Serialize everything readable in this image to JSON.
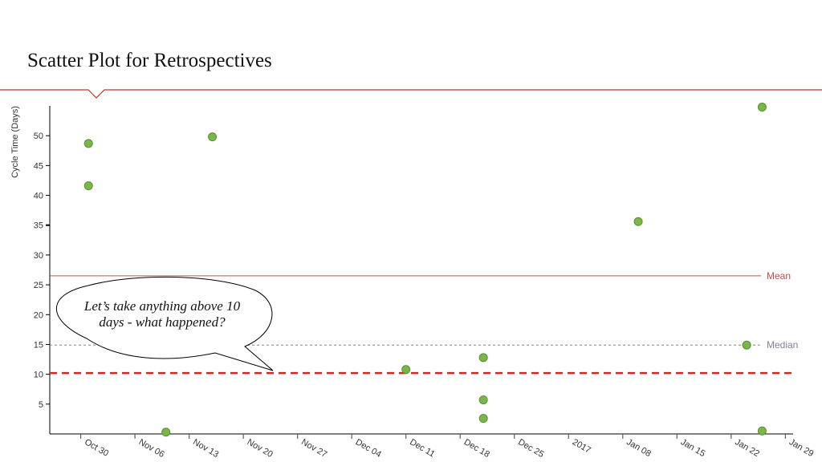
{
  "slide": {
    "title": "Scatter Plot for Retrospectives",
    "callout": "Let’s take anything above 10 days - what happened?"
  },
  "colors": {
    "accent_rule": "#c0392b",
    "point_fill": "#7ab648",
    "point_stroke": "#5a8f2e",
    "mean_line": "#c0504d",
    "median_line": "#8080a0",
    "threshold_line": "#d0281e"
  },
  "chart_data": {
    "type": "scatter",
    "ylabel": "Cycle Time (Days)",
    "xlabel": "",
    "ylim": [
      0,
      55
    ],
    "yticks": [
      5,
      10,
      15,
      20,
      25,
      30,
      35,
      40,
      45,
      50
    ],
    "x_ticks": [
      "Oct 30",
      "Nov 06",
      "Nov 13",
      "Nov 20",
      "Nov 27",
      "Dec 04",
      "Dec 11",
      "Dec 18",
      "Dec 25",
      "2017",
      "Jan 08",
      "Jan 15",
      "Jan 22",
      "Jan 29"
    ],
    "x_tick_dates": [
      "2016-10-30",
      "2016-11-06",
      "2016-11-13",
      "2016-11-20",
      "2016-11-27",
      "2016-12-04",
      "2016-12-11",
      "2016-12-18",
      "2016-12-25",
      "2017-01-01",
      "2017-01-08",
      "2017-01-15",
      "2017-01-22",
      "2017-01-29"
    ],
    "xlim": [
      "2016-10-26",
      "2017-01-30"
    ],
    "points": [
      {
        "date": "2016-10-31",
        "y": 48.7
      },
      {
        "date": "2016-10-31",
        "y": 41.6
      },
      {
        "date": "2016-11-16",
        "y": 49.8
      },
      {
        "date": "2016-11-10",
        "y": 0.3
      },
      {
        "date": "2016-12-11",
        "y": 10.8
      },
      {
        "date": "2016-12-21",
        "y": 12.8
      },
      {
        "date": "2016-12-21",
        "y": 5.7
      },
      {
        "date": "2016-12-21",
        "y": 2.6
      },
      {
        "date": "2017-01-10",
        "y": 35.6
      },
      {
        "date": "2017-01-24",
        "y": 14.9
      },
      {
        "date": "2017-01-26",
        "y": 54.8
      },
      {
        "date": "2017-01-26",
        "y": 0.5
      }
    ],
    "reference_lines": [
      {
        "label": "Mean",
        "y": 26.5
      },
      {
        "label": "Median",
        "y": 14.9
      },
      {
        "label": "",
        "y": 10.2
      }
    ]
  }
}
